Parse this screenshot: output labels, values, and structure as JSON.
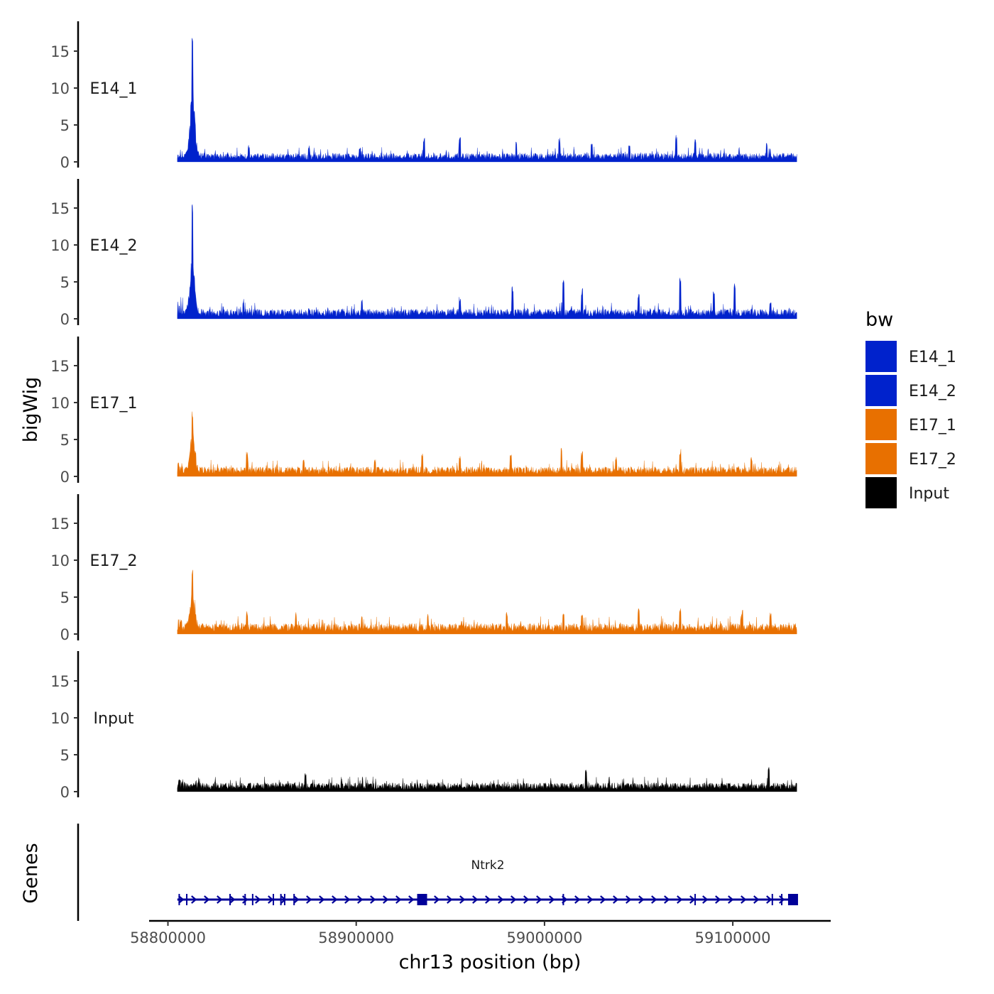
{
  "chart_data": {
    "type": "area",
    "title": "",
    "xlabel": "chr13 position (bp)",
    "ylabel": "bigWig",
    "genes_label": "Genes",
    "xlim": [
      58790000,
      59152000
    ],
    "data_range": [
      58805000,
      59134000
    ],
    "x_ticks": [
      58800000,
      58900000,
      59000000,
      59100000
    ],
    "x_tick_labels": [
      "58800000",
      "58900000",
      "59000000",
      "59100000"
    ],
    "ylim": [
      0,
      19
    ],
    "y_ticks": [
      0,
      5,
      10,
      15
    ],
    "y_tick_labels": [
      "0",
      "5",
      "10",
      "15"
    ],
    "series": [
      {
        "name": "E14_1",
        "label": "E14_1",
        "color": "#0022CC",
        "peak_x": 58813000,
        "peak_value": 17.8,
        "shoulder_value": 9.5,
        "baseline_value": 1.0,
        "local_peaks": [
          [
            58843000,
            2.3
          ],
          [
            58875000,
            2.2
          ],
          [
            58902000,
            2.0
          ],
          [
            58936000,
            3.3
          ],
          [
            58955000,
            3.5
          ],
          [
            58985000,
            2.9
          ],
          [
            59008000,
            3.3
          ],
          [
            59025000,
            2.6
          ],
          [
            59045000,
            2.8
          ],
          [
            59070000,
            3.8
          ],
          [
            59080000,
            3.2
          ],
          [
            59118000,
            2.6
          ]
        ]
      },
      {
        "name": "E14_2",
        "label": "E14_2",
        "color": "#0022CC",
        "peak_x": 58813000,
        "peak_value": 15.8,
        "shoulder_value": 8.0,
        "baseline_value": 1.1,
        "local_peaks": [
          [
            58840000,
            2.7
          ],
          [
            58903000,
            2.9
          ],
          [
            58955000,
            3.0
          ],
          [
            58983000,
            4.5
          ],
          [
            59010000,
            5.4
          ],
          [
            59020000,
            4.2
          ],
          [
            59050000,
            3.6
          ],
          [
            59072000,
            6.0
          ],
          [
            59090000,
            4.2
          ],
          [
            59101000,
            5.1
          ],
          [
            59120000,
            2.6
          ]
        ]
      },
      {
        "name": "E17_1",
        "label": "E17_1",
        "color": "#E87000",
        "peak_x": 58813000,
        "peak_value": 8.8,
        "shoulder_value": 5.4,
        "baseline_value": 1.1,
        "local_peaks": [
          [
            58842000,
            3.5
          ],
          [
            58872000,
            2.4
          ],
          [
            58910000,
            2.3
          ],
          [
            58935000,
            3.4
          ],
          [
            58955000,
            3.0
          ],
          [
            58982000,
            3.1
          ],
          [
            59009000,
            4.1
          ],
          [
            59020000,
            3.4
          ],
          [
            59038000,
            2.7
          ],
          [
            59072000,
            3.7
          ],
          [
            59110000,
            2.7
          ]
        ]
      },
      {
        "name": "E17_2",
        "label": "E17_2",
        "color": "#E87000",
        "peak_x": 58813000,
        "peak_value": 8.7,
        "shoulder_value": 4.7,
        "baseline_value": 1.2,
        "local_peaks": [
          [
            58842000,
            3.1
          ],
          [
            58868000,
            3.0
          ],
          [
            58903000,
            2.6
          ],
          [
            58938000,
            2.9
          ],
          [
            58980000,
            3.1
          ],
          [
            59010000,
            3.1
          ],
          [
            59020000,
            3.0
          ],
          [
            59050000,
            3.7
          ],
          [
            59072000,
            3.5
          ],
          [
            59105000,
            3.4
          ],
          [
            59120000,
            3.0
          ]
        ]
      },
      {
        "name": "Input",
        "label": "Input",
        "color": "#000000",
        "peak_x": 59119000,
        "peak_value": 3.6,
        "shoulder_value": 2.0,
        "baseline_value": 1.0,
        "local_peaks": [
          [
            58873000,
            2.6
          ],
          [
            59022000,
            3.0
          ],
          [
            59119000,
            3.6
          ]
        ]
      }
    ],
    "legend": {
      "title": "bw",
      "placement": "right",
      "entries": [
        {
          "label": "E14_1",
          "color": "#0022CC"
        },
        {
          "label": "E14_2",
          "color": "#0022CC"
        },
        {
          "label": "E17_1",
          "color": "#E87000"
        },
        {
          "label": "E17_2",
          "color": "#E87000"
        },
        {
          "label": "Input",
          "color": "#000000"
        }
      ]
    },
    "gene": {
      "name": "Ntrk2",
      "strand": "+",
      "start": 58805000,
      "end": 59134000,
      "color": "#000099",
      "exons": [
        58806000,
        58810000,
        58833000,
        58841000,
        58845000,
        58856000,
        58860000,
        58862000,
        58867000,
        59010000,
        59080000,
        59121000,
        59126000,
        59130000
      ],
      "large_exons": [
        58935000,
        59132000
      ]
    }
  }
}
